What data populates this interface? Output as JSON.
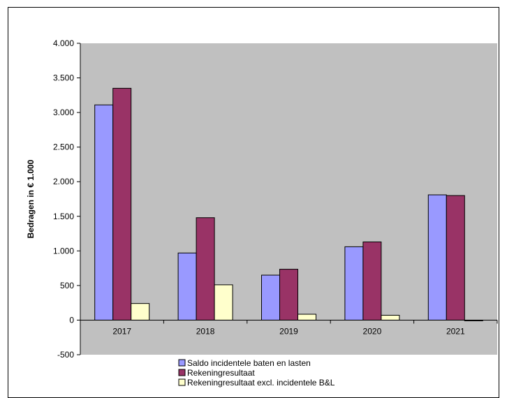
{
  "chart_data": {
    "type": "bar",
    "title": "",
    "xlabel": "",
    "ylabel": "Bedragen in € 1.000",
    "categories": [
      "2017",
      "2018",
      "2019",
      "2020",
      "2021"
    ],
    "ylim": [
      -500,
      4000
    ],
    "yticks": [
      -500,
      0,
      500,
      1000,
      1500,
      2000,
      2500,
      3000,
      3500,
      4000
    ],
    "ytick_labels": [
      "-500",
      "0",
      "500",
      "1.000",
      "1.500",
      "2.000",
      "2.500",
      "3.000",
      "3.500",
      "4.000"
    ],
    "grid": false,
    "legend_position": "bottom",
    "plot_background": "#c0c0c0",
    "series": [
      {
        "name": "Saldo incidentele baten en lasten",
        "color": "#9999ff",
        "values": [
          3110,
          970,
          650,
          1060,
          1810
        ]
      },
      {
        "name": "Rekeningresultaat",
        "color": "#993366",
        "values": [
          3350,
          1480,
          735,
          1130,
          1800
        ]
      },
      {
        "name": "Rekeningresultaat excl. incidentele B&L",
        "color": "#ffffcc",
        "values": [
          240,
          510,
          85,
          70,
          -10
        ]
      }
    ]
  }
}
